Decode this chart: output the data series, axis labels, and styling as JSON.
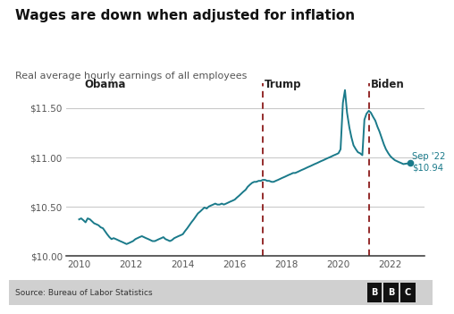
{
  "title": "Wages are down when adjusted for inflation",
  "subtitle": "Real average hourly earnings of all employees",
  "source": "Source: Bureau of Labor Statistics",
  "line_color": "#1a7a8a",
  "background_color": "#ffffff",
  "footer_bg": "#d0d0d0",
  "ylim": [
    10.0,
    11.75
  ],
  "yticks": [
    10.0,
    10.5,
    11.0,
    11.5
  ],
  "ytick_labels": [
    "$10.00",
    "$10.50",
    "$11.00",
    "$11.50"
  ],
  "xlim": [
    2009.5,
    2023.3
  ],
  "xticks": [
    2010,
    2012,
    2014,
    2016,
    2018,
    2020,
    2022
  ],
  "obama_x": 2010.2,
  "trump_line_x": 2017.08,
  "biden_line_x": 2021.17,
  "endpoint_x": 2022.75,
  "endpoint_y": 10.94,
  "annotation_text": "Sep '22\n$10.94",
  "series_x": [
    2010.0,
    2010.08,
    2010.17,
    2010.25,
    2010.33,
    2010.42,
    2010.5,
    2010.58,
    2010.67,
    2010.75,
    2010.83,
    2010.92,
    2011.0,
    2011.08,
    2011.17,
    2011.25,
    2011.33,
    2011.42,
    2011.5,
    2011.58,
    2011.67,
    2011.75,
    2011.83,
    2011.92,
    2012.0,
    2012.08,
    2012.17,
    2012.25,
    2012.33,
    2012.42,
    2012.5,
    2012.58,
    2012.67,
    2012.75,
    2012.83,
    2012.92,
    2013.0,
    2013.08,
    2013.17,
    2013.25,
    2013.33,
    2013.42,
    2013.5,
    2013.58,
    2013.67,
    2013.75,
    2013.83,
    2013.92,
    2014.0,
    2014.08,
    2014.17,
    2014.25,
    2014.33,
    2014.42,
    2014.5,
    2014.58,
    2014.67,
    2014.75,
    2014.83,
    2014.92,
    2015.0,
    2015.08,
    2015.17,
    2015.25,
    2015.33,
    2015.42,
    2015.5,
    2015.58,
    2015.67,
    2015.75,
    2015.83,
    2015.92,
    2016.0,
    2016.08,
    2016.17,
    2016.25,
    2016.33,
    2016.42,
    2016.5,
    2016.58,
    2016.67,
    2016.75,
    2016.83,
    2016.92,
    2017.0,
    2017.08,
    2017.17,
    2017.25,
    2017.33,
    2017.42,
    2017.5,
    2017.58,
    2017.67,
    2017.75,
    2017.83,
    2017.92,
    2018.0,
    2018.08,
    2018.17,
    2018.25,
    2018.33,
    2018.42,
    2018.5,
    2018.58,
    2018.67,
    2018.75,
    2018.83,
    2018.92,
    2019.0,
    2019.08,
    2019.17,
    2019.25,
    2019.33,
    2019.42,
    2019.5,
    2019.58,
    2019.67,
    2019.75,
    2019.83,
    2019.92,
    2020.0,
    2020.08,
    2020.17,
    2020.25,
    2020.33,
    2020.42,
    2020.5,
    2020.58,
    2020.67,
    2020.75,
    2020.83,
    2020.92,
    2021.0,
    2021.08,
    2021.17,
    2021.25,
    2021.33,
    2021.42,
    2021.5,
    2021.58,
    2021.67,
    2021.75,
    2021.83,
    2021.92,
    2022.0,
    2022.08,
    2022.17,
    2022.25,
    2022.33,
    2022.42,
    2022.5,
    2022.75
  ],
  "series_y": [
    10.37,
    10.38,
    10.36,
    10.34,
    10.38,
    10.37,
    10.35,
    10.33,
    10.32,
    10.31,
    10.29,
    10.28,
    10.25,
    10.22,
    10.19,
    10.17,
    10.18,
    10.17,
    10.16,
    10.15,
    10.14,
    10.13,
    10.12,
    10.13,
    10.14,
    10.15,
    10.17,
    10.18,
    10.19,
    10.2,
    10.19,
    10.18,
    10.17,
    10.16,
    10.15,
    10.15,
    10.16,
    10.17,
    10.18,
    10.19,
    10.17,
    10.16,
    10.15,
    10.16,
    10.18,
    10.19,
    10.2,
    10.21,
    10.22,
    10.25,
    10.28,
    10.31,
    10.34,
    10.37,
    10.4,
    10.43,
    10.45,
    10.47,
    10.49,
    10.48,
    10.5,
    10.51,
    10.52,
    10.53,
    10.52,
    10.52,
    10.53,
    10.52,
    10.53,
    10.54,
    10.55,
    10.56,
    10.57,
    10.59,
    10.61,
    10.63,
    10.65,
    10.67,
    10.7,
    10.72,
    10.74,
    10.75,
    10.75,
    10.76,
    10.76,
    10.77,
    10.77,
    10.76,
    10.76,
    10.75,
    10.75,
    10.76,
    10.77,
    10.78,
    10.79,
    10.8,
    10.81,
    10.82,
    10.83,
    10.84,
    10.84,
    10.85,
    10.86,
    10.87,
    10.88,
    10.89,
    10.9,
    10.91,
    10.92,
    10.93,
    10.94,
    10.95,
    10.96,
    10.97,
    10.98,
    10.99,
    11.0,
    11.01,
    11.02,
    11.03,
    11.04,
    11.08,
    11.55,
    11.68,
    11.45,
    11.3,
    11.2,
    11.12,
    11.08,
    11.05,
    11.04,
    11.02,
    11.38,
    11.44,
    11.47,
    11.45,
    11.41,
    11.37,
    11.31,
    11.26,
    11.19,
    11.13,
    11.08,
    11.04,
    11.01,
    10.99,
    10.97,
    10.96,
    10.95,
    10.94,
    10.93,
    10.94
  ]
}
